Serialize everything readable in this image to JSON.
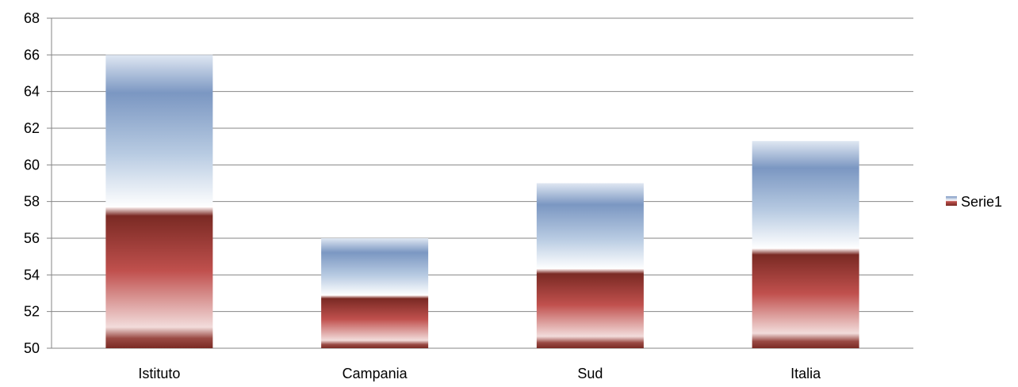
{
  "chart_data": {
    "type": "bar",
    "categories": [
      "Istituto",
      "Campania",
      "Sud",
      "Italia"
    ],
    "series": [
      {
        "name": "Serie1",
        "values": [
          66.0,
          56.0,
          59.0,
          61.3
        ]
      }
    ],
    "ylim": [
      50,
      68
    ],
    "yticks": [
      50,
      52,
      54,
      56,
      58,
      60,
      62,
      64,
      66,
      68
    ],
    "grid": true,
    "legend": "right",
    "colors": {
      "blue_top": "#7b97c2",
      "blue_light": "#ffffff",
      "red_dark": "#7a2a24",
      "red_mid": "#c0504d",
      "red_light": "#f2dcdb",
      "gridline": "#868686"
    }
  }
}
